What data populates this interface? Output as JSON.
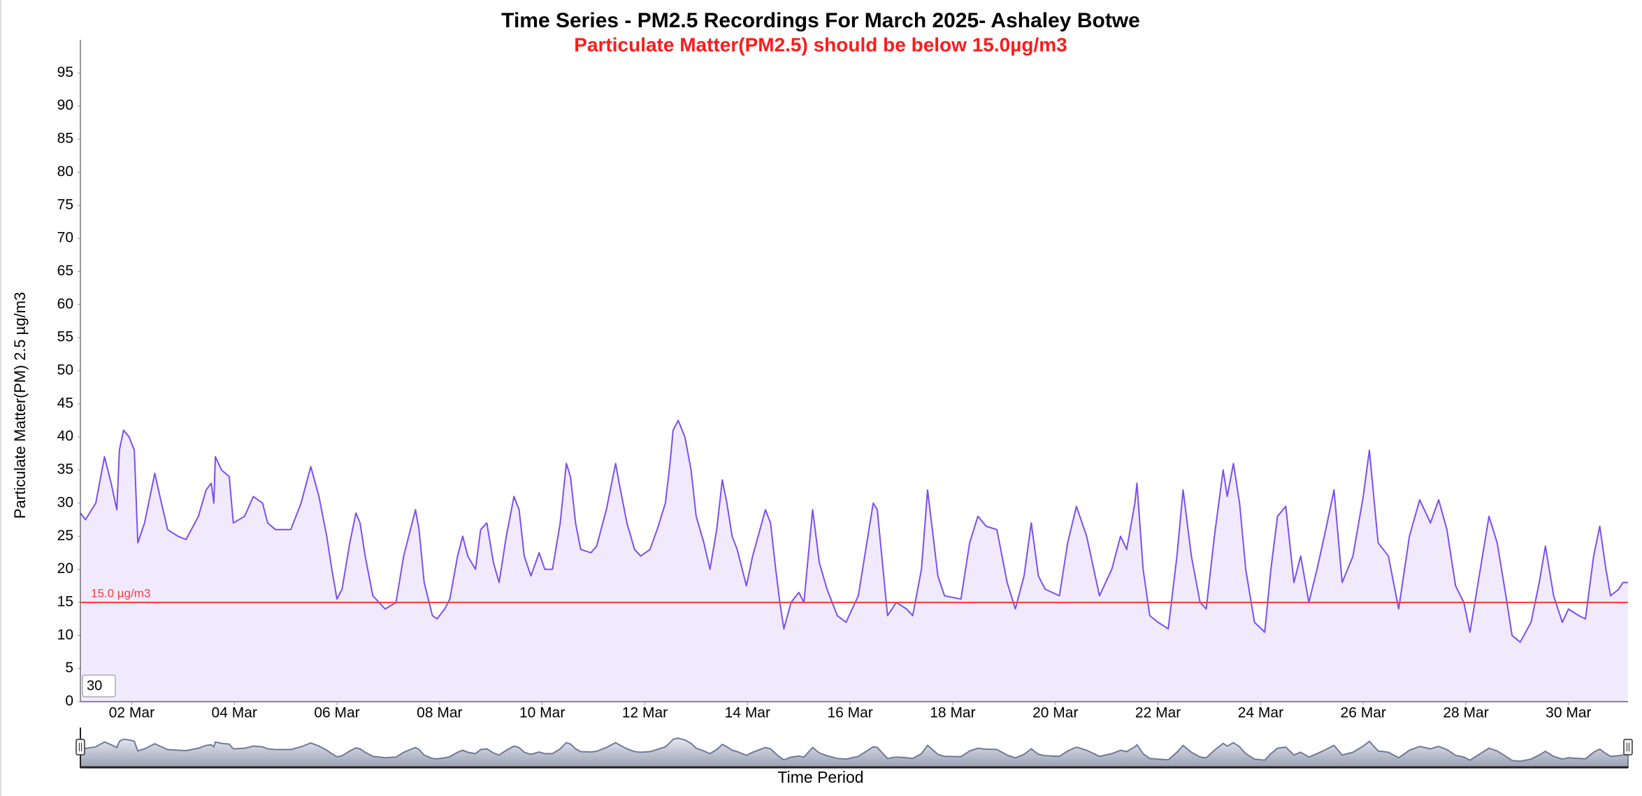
{
  "chart_data": {
    "type": "area",
    "title": "Time Series - PM2.5 Recordings For March 2025- Ashaley Botwe",
    "subtitle": "Particulate Matter(PM2.5) should be below 15.0µg/m3",
    "y_label": "Particulate Matter(PM) 2.5 µg/m3",
    "x_label": "Time Period",
    "input_value": 30,
    "color": "#7b4ff0",
    "fill_color": "#f1eafd",
    "threshold": {
      "value": 15,
      "label": "15.0 µg/m3",
      "color": "#ff3b3b"
    },
    "navigator": true,
    "xlim": [
      1,
      31.16
    ],
    "ylim": [
      0,
      100
    ],
    "xticks": [
      {
        "value": 2,
        "label": "02 Mar"
      },
      {
        "value": 4,
        "label": "04 Mar"
      },
      {
        "value": 6,
        "label": "06 Mar"
      },
      {
        "value": 8,
        "label": "08 Mar"
      },
      {
        "value": 10,
        "label": "10 Mar"
      },
      {
        "value": 12,
        "label": "12 Mar"
      },
      {
        "value": 14,
        "label": "14 Mar"
      },
      {
        "value": 16,
        "label": "16 Mar"
      },
      {
        "value": 18,
        "label": "18 Mar"
      },
      {
        "value": 20,
        "label": "20 Mar"
      },
      {
        "value": 22,
        "label": "22 Mar"
      },
      {
        "value": 24,
        "label": "24 Mar"
      },
      {
        "value": 26,
        "label": "26 Mar"
      },
      {
        "value": 28,
        "label": "28 Mar"
      },
      {
        "value": 30,
        "label": "30 Mar"
      }
    ],
    "yticks": [
      0,
      5,
      10,
      15,
      20,
      25,
      30,
      35,
      40,
      45,
      50,
      55,
      60,
      65,
      70,
      75,
      80,
      85,
      90,
      95
    ],
    "x": [
      1,
      1.1,
      1.3,
      1.47,
      1.6,
      1.71,
      1.76,
      1.84,
      1.95,
      2.05,
      2.12,
      2.25,
      2.45,
      2.55,
      2.7,
      2.9,
      3.06,
      3.3,
      3.45,
      3.55,
      3.6,
      3.63,
      3.75,
      3.9,
      3.98,
      4.2,
      4.37,
      4.55,
      4.65,
      4.8,
      5.1,
      5.3,
      5.49,
      5.65,
      5.8,
      5.9,
      6,
      6.1,
      6.25,
      6.37,
      6.45,
      6.55,
      6.7,
      6.94,
      7.15,
      7.3,
      7.53,
      7.6,
      7.7,
      7.86,
      7.95,
      8.1,
      8.2,
      8.35,
      8.45,
      8.55,
      8.7,
      8.8,
      8.92,
      9.05,
      9.16,
      9.3,
      9.45,
      9.55,
      9.65,
      9.78,
      9.94,
      10.05,
      10.2,
      10.35,
      10.47,
      10.55,
      10.65,
      10.75,
      10.95,
      11.06,
      11.25,
      11.43,
      11.5,
      11.65,
      11.8,
      11.92,
      12.1,
      12.24,
      12.4,
      12.49,
      12.55,
      12.65,
      12.78,
      12.9,
      13,
      13.15,
      13.27,
      13.4,
      13.51,
      13.6,
      13.7,
      13.8,
      13.98,
      14.1,
      14.35,
      14.45,
      14.55,
      14.63,
      14.71,
      14.85,
      15,
      15.1,
      15.27,
      15.4,
      15.55,
      15.75,
      15.92,
      16.16,
      16.45,
      16.53,
      16.73,
      16.9,
      17.1,
      17.22,
      17.39,
      17.51,
      17.71,
      17.84,
      18.16,
      18.33,
      18.49,
      18.65,
      18.86,
      19.06,
      19.22,
      19.39,
      19.53,
      19.67,
      19.8,
      20.08,
      20.24,
      20.41,
      20.61,
      20.86,
      21.1,
      21.27,
      21.39,
      21.55,
      21.59,
      21.71,
      21.84,
      22,
      22.2,
      22.37,
      22.49,
      22.65,
      22.82,
      22.94,
      23.1,
      23.27,
      23.35,
      23.47,
      23.59,
      23.71,
      23.88,
      24.08,
      24.2,
      24.33,
      24.49,
      24.65,
      24.78,
      24.94,
      25.1,
      25.27,
      25.43,
      25.59,
      25.8,
      26,
      26.12,
      26.29,
      26.49,
      26.69,
      26.9,
      27.1,
      27.31,
      27.47,
      27.63,
      27.8,
      27.96,
      28.08,
      28.24,
      28.45,
      28.61,
      28.78,
      28.9,
      29.06,
      29.27,
      29.43,
      29.55,
      29.71,
      29.88,
      30,
      30.2,
      30.33,
      30.49,
      30.61,
      30.73,
      30.82,
      30.98,
      31.06,
      31.16
    ],
    "values": [
      28.5,
      27.5,
      30,
      37,
      33,
      29,
      38,
      41,
      40,
      38,
      24,
      27,
      34.5,
      31,
      26,
      25,
      24.5,
      28,
      32,
      33,
      30,
      37,
      35,
      34,
      27,
      28,
      31,
      30,
      27,
      26,
      26,
      30,
      35.5,
      31,
      25,
      20,
      15.5,
      17,
      24,
      28.5,
      27,
      22,
      16,
      14,
      15,
      22,
      29,
      26,
      18,
      13,
      12.5,
      14,
      15.5,
      22,
      25,
      22,
      20,
      26,
      27,
      21,
      18,
      25,
      31,
      29,
      22,
      19,
      22.5,
      20,
      20,
      27,
      36,
      34,
      27,
      23,
      22.5,
      23.5,
      29,
      36,
      33,
      27,
      23,
      22,
      23,
      26,
      30,
      36,
      41,
      42.5,
      40,
      35,
      28,
      24,
      20,
      26,
      33.5,
      30,
      25,
      23,
      17.5,
      22,
      29,
      27,
      20,
      15,
      11,
      15,
      16.5,
      15,
      29,
      21,
      17,
      13,
      12,
      16,
      30,
      29,
      13,
      15,
      14,
      13,
      20,
      32,
      19,
      16,
      15.5,
      24,
      28,
      26.5,
      26,
      18,
      14,
      19,
      27,
      19,
      17,
      16,
      24,
      29.5,
      25,
      16,
      20,
      25,
      23,
      30,
      33,
      20,
      13,
      12,
      11,
      22,
      32,
      22,
      15,
      14,
      25,
      35,
      31,
      36,
      30,
      20,
      12,
      10.5,
      20,
      28,
      29.5,
      18,
      22,
      15,
      20,
      26,
      32,
      18,
      22,
      31,
      38,
      24,
      22,
      14,
      25,
      30.5,
      27,
      30.5,
      26,
      17.5,
      15,
      10.5,
      18,
      28,
      24,
      16,
      10,
      9,
      12,
      18,
      23.5,
      16,
      12,
      14,
      13,
      12.5,
      22,
      26.5,
      20,
      16,
      17,
      18,
      18
    ]
  }
}
